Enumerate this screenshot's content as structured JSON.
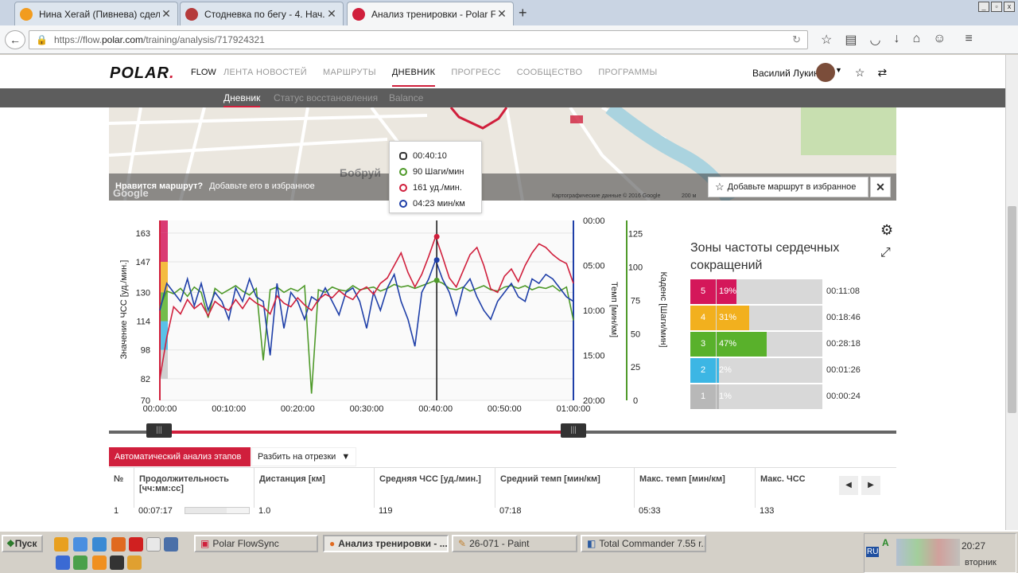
{
  "browser": {
    "tabs": [
      {
        "title": "Нина Хегай (Пивнева) сдел...",
        "icon_color": "#f29c1f"
      },
      {
        "title": "Стодневка по бегу - 4. Нач...",
        "icon_color": "#b53b3b"
      },
      {
        "title": "Анализ тренировки - Polar F...",
        "icon_color": "#d01f3c"
      }
    ],
    "new_tab_label": "+",
    "url_prefix": "https://flow.",
    "url_host": "polar.com",
    "url_path": "/training/analysis/717924321"
  },
  "header": {
    "logo_text": "POLAR",
    "logo_suffix": ".",
    "flow_label": "FLOW",
    "nav": [
      "ЛЕНТА НОВОСТЕЙ",
      "МАРШРУТЫ",
      "ДНЕВНИК",
      "ПРОГРЕСС",
      "СООБЩЕСТВО",
      "ПРОГРАММЫ"
    ],
    "active_nav": "ДНЕВНИК",
    "user_name": "Василий Лукин"
  },
  "subnav": {
    "items": [
      "Дневник",
      "Статус восстановления",
      "Balance"
    ],
    "active": "Дневник"
  },
  "map": {
    "like_question": "Нравится маршрут?",
    "like_prompt": "Добавьте его в избранное",
    "fav_button": "Добавьте маршрут в избранное",
    "attribution": "Картографические данные © 2016 Google",
    "scale": "200 м",
    "city_label": "Бобруй",
    "google": "Google"
  },
  "tooltip": {
    "time": "00:40:10",
    "cadence": "90 Шаги/мин",
    "hr": "161 уд./мин.",
    "pace": "04:23 мин/км"
  },
  "chart_data": {
    "type": "line",
    "x_label": "",
    "x_ticks": [
      "00:00:00",
      "00:10:00",
      "00:20:00",
      "00:30:00",
      "00:40:00",
      "00:50:00",
      "01:00:00"
    ],
    "x_range_min": [
      0,
      60
    ],
    "cursor_min": 40.17,
    "left_axis": {
      "label": "Значение ЧСС [уд./мин.]",
      "ticks": [
        163,
        147,
        130,
        114,
        98,
        82,
        70
      ],
      "range": [
        70,
        170
      ],
      "color": "#d01f3c"
    },
    "pace_axis": {
      "label": "Темп [мин/км]",
      "ticks": [
        "00:00",
        "05:00",
        "10:00",
        "15:00",
        "20:00"
      ],
      "range": [
        0,
        20
      ],
      "color": "#1f3fa8"
    },
    "cadence_axis": {
      "label": "Каденс [Шаги/мин]",
      "ticks": [
        125,
        100,
        75,
        50,
        25,
        0
      ],
      "range": [
        0,
        135
      ],
      "color": "#4f9a2a"
    },
    "series": [
      {
        "axis": "hr",
        "color": "#d01f3c",
        "x": [
          0,
          1,
          2,
          3,
          4,
          5,
          6,
          7,
          8,
          9,
          10,
          11,
          12,
          13,
          14,
          15,
          16,
          17,
          18,
          19,
          20,
          21,
          22,
          23,
          24,
          25,
          26,
          27,
          28,
          29,
          30,
          31,
          32,
          33,
          34,
          35,
          36,
          37,
          38,
          39,
          40,
          41,
          42,
          43,
          44,
          45,
          46,
          47,
          48,
          49,
          50,
          51,
          52,
          53,
          54,
          55,
          56,
          57,
          58,
          59,
          60
        ],
        "y": [
          82,
          105,
          122,
          118,
          126,
          121,
          124,
          117,
          125,
          122,
          120,
          126,
          121,
          127,
          124,
          122,
          118,
          128,
          124,
          122,
          127,
          123,
          120,
          126,
          129,
          127,
          131,
          128,
          126,
          131,
          133,
          129,
          135,
          138,
          145,
          152,
          141,
          133,
          140,
          150,
          161,
          150,
          138,
          133,
          142,
          151,
          155,
          145,
          132,
          130,
          139,
          143,
          136,
          145,
          152,
          157,
          155,
          151,
          148,
          146,
          135
        ]
      },
      {
        "axis": "pace",
        "color": "#1f3fa8",
        "x": [
          0,
          1,
          2,
          3,
          4,
          5,
          6,
          7,
          8,
          9,
          10,
          11,
          12,
          13,
          14,
          15,
          16,
          17,
          18,
          19,
          20,
          21,
          22,
          23,
          24,
          25,
          26,
          27,
          28,
          29,
          30,
          31,
          32,
          33,
          34,
          35,
          36,
          37,
          38,
          39,
          40,
          41,
          42,
          43,
          44,
          45,
          46,
          47,
          48,
          49,
          50,
          51,
          52,
          53,
          54,
          55,
          56,
          57,
          58,
          59,
          60
        ],
        "y": [
          10,
          7,
          8,
          9,
          6.5,
          9.5,
          7,
          10,
          8,
          9,
          11,
          7.5,
          9,
          6.5,
          8.5,
          9,
          15,
          7,
          12,
          8,
          9,
          11,
          8.5,
          9,
          7.5,
          9,
          10.5,
          8,
          7.5,
          9,
          12,
          8,
          10,
          7.5,
          6,
          9,
          11,
          14,
          8,
          6.5,
          4.4,
          6.5,
          8,
          10.5,
          7.5,
          6.5,
          8.5,
          10,
          11,
          9,
          8,
          7,
          8.5,
          9,
          6.5,
          7,
          6,
          6.5,
          7.5,
          8.5,
          9
        ]
      },
      {
        "axis": "cadence",
        "color": "#4f9a2a",
        "x": [
          0,
          1,
          2,
          3,
          4,
          5,
          6,
          7,
          8,
          9,
          10,
          11,
          12,
          13,
          14,
          15,
          16,
          17,
          18,
          19,
          20,
          21,
          22,
          23,
          24,
          25,
          26,
          27,
          28,
          29,
          30,
          31,
          32,
          33,
          34,
          35,
          36,
          37,
          38,
          39,
          40,
          41,
          42,
          43,
          44,
          45,
          46,
          47,
          48,
          49,
          50,
          51,
          52,
          53,
          54,
          55,
          56,
          57,
          58,
          59,
          60
        ],
        "y": [
          70,
          82,
          80,
          84,
          78,
          85,
          81,
          62,
          84,
          80,
          83,
          86,
          82,
          79,
          84,
          30,
          83,
          85,
          81,
          84,
          82,
          86,
          5,
          83,
          81,
          85,
          83,
          82,
          86,
          83,
          84,
          85,
          82,
          84,
          87,
          85,
          86,
          84,
          86,
          88,
          90,
          88,
          84,
          83,
          85,
          82,
          84,
          86,
          83,
          82,
          85,
          86,
          84,
          86,
          83,
          85,
          84,
          86,
          82,
          85,
          60
        ]
      }
    ]
  },
  "zones": {
    "title": "Зоны частоты сердечных сокращений",
    "items": [
      {
        "num": "5",
        "pct": "19%",
        "fraction": 0.19,
        "time": "00:11:08",
        "color": "#d4175a"
      },
      {
        "num": "4",
        "pct": "31%",
        "fraction": 0.31,
        "time": "00:18:46",
        "color": "#f2b01e"
      },
      {
        "num": "3",
        "pct": "47%",
        "fraction": 0.47,
        "time": "00:28:18",
        "color": "#59b12b"
      },
      {
        "num": "2",
        "pct": "2%",
        "fraction": 0.02,
        "time": "00:01:26",
        "color": "#3cb6e4"
      },
      {
        "num": "1",
        "pct": "1%",
        "fraction": 0.01,
        "time": "00:00:24",
        "color": "#b8b8b8"
      }
    ]
  },
  "range": {
    "start_fraction": 0.0,
    "end_fraction": 1.0
  },
  "laps": {
    "auto_button": "Автоматический анализ этапов",
    "split_button": "Разбить на отрезки",
    "headers": [
      "№",
      "Продолжительность [чч:мм:сс]",
      "Дистанция [км]",
      "Средняя ЧСС [уд./мин.]",
      "Средний темп [мин/км]",
      "Макс. темп [мин/км]",
      "Макс. ЧСС"
    ],
    "rows": [
      {
        "num": "1",
        "duration": "00:07:17",
        "progress": 0.65,
        "distance": "1.0",
        "avg_hr": "119",
        "avg_pace": "07:18",
        "max_pace": "05:33",
        "max_hr": "133"
      }
    ]
  },
  "taskbar": {
    "start": "Пуск",
    "tasks": [
      "Polar FlowSync",
      "Анализ тренировки - ...",
      "26-071 - Paint",
      "Total Commander 7.55 r..."
    ],
    "active_task": "Анализ тренировки - ...",
    "lang": "RU",
    "clock": "20:27",
    "day": "вторник"
  }
}
